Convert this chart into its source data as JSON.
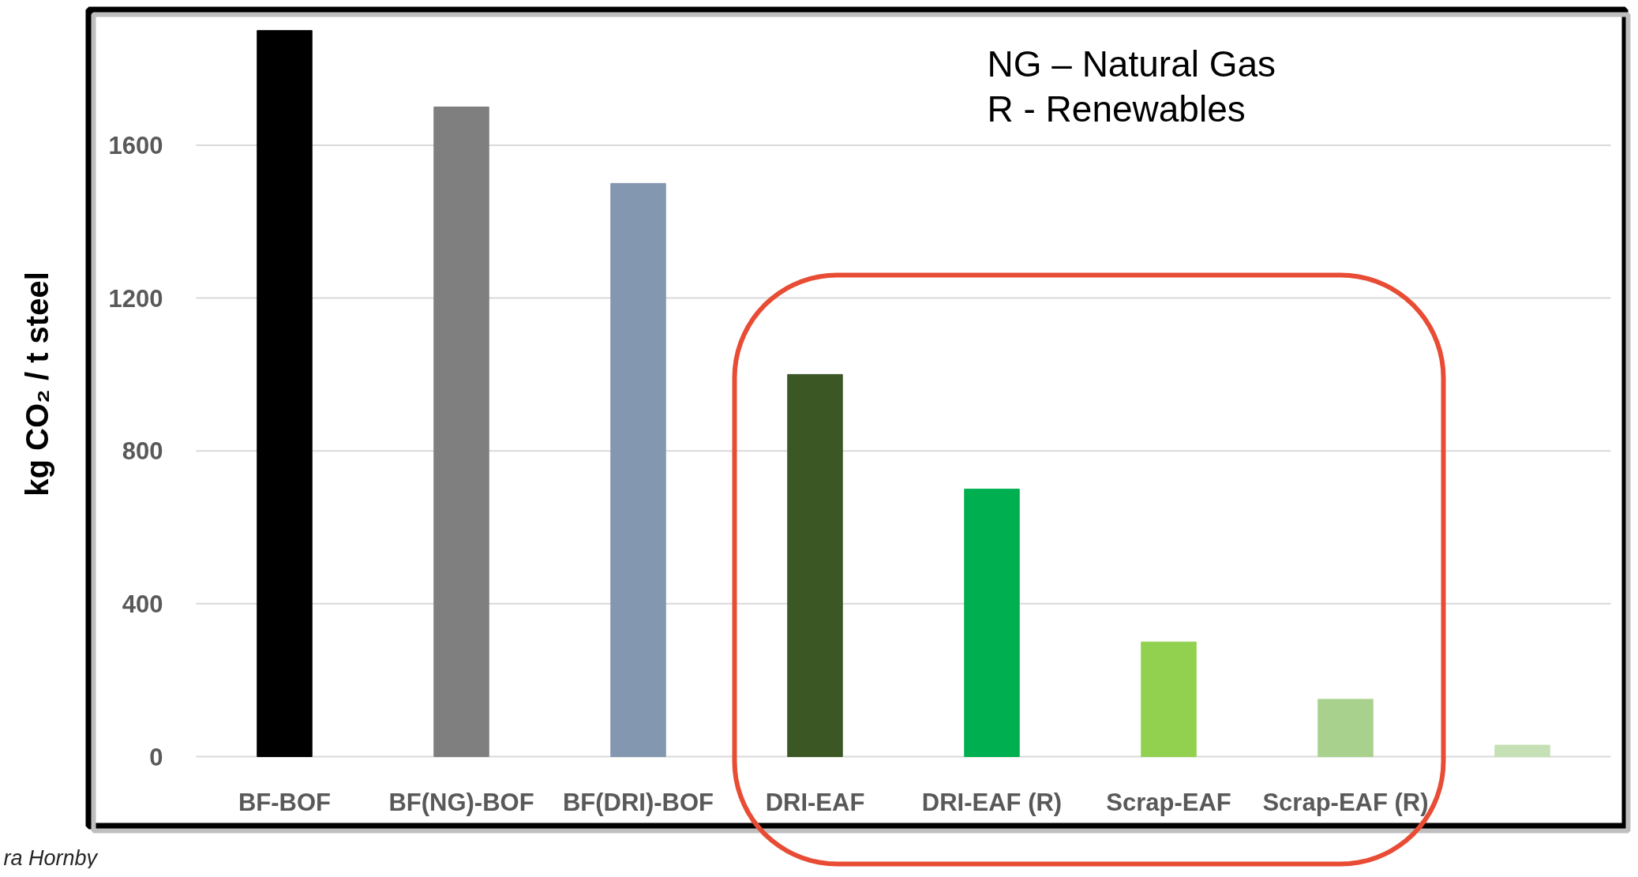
{
  "chart_data": {
    "type": "bar",
    "categories": [
      "BF-BOF",
      "BF(NG)-BOF",
      "BF(DRI)-BOF",
      "DRI-EAF",
      "DRI-EAF (R)",
      "Scrap-EAF",
      "Scrap-EAF (R)",
      null
    ],
    "values": [
      1900,
      1700,
      1500,
      1000,
      700,
      300,
      150,
      30
    ],
    "colors": [
      "#000000",
      "#7f7f7f",
      "#8497b0",
      "#3a5724",
      "#00b050",
      "#92d050",
      "#a9d18e",
      "#c5e0b4"
    ],
    "ylabel": "kg CO₂ / t steel",
    "ylim": [
      0,
      1950
    ],
    "yticks": [
      0,
      400,
      800,
      1200,
      1600
    ],
    "grid": "y",
    "annotations": [
      "NG – Natural Gas",
      "R - Renewables",
      "ra Hornby"
    ]
  }
}
